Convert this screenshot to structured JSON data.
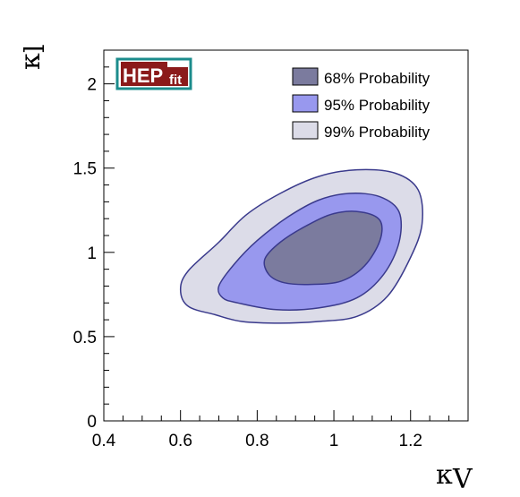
{
  "chart_data": {
    "type": "contour",
    "title": "",
    "xlabel": "κ",
    "xlabel_sub": "V",
    "ylabel": "κ",
    "ylabel_sub": "l",
    "xlim": [
      0.4,
      1.35
    ],
    "ylim": [
      0,
      2.2
    ],
    "x_ticks": [
      0.4,
      0.6,
      0.8,
      1,
      1.2
    ],
    "x_tick_labels": [
      "0.4",
      "0.6",
      "0.8",
      "1",
      "1.2"
    ],
    "y_ticks": [
      0,
      0.5,
      1,
      1.5,
      2
    ],
    "y_tick_labels": [
      "0",
      "0.5",
      "1",
      "1.5",
      "2"
    ],
    "logo": {
      "main": "HEP",
      "sub": "fit"
    },
    "legend": {
      "position": "top-right",
      "entries": [
        {
          "label": "68% Probability",
          "color": "#7b7b9e"
        },
        {
          "label": "95% Probability",
          "color": "#9898ee"
        },
        {
          "label": "99% Probability",
          "color": "#dcdce8"
        }
      ]
    },
    "regions": [
      {
        "name": "99% Probability",
        "fill": "#dcdce8",
        "points": [
          [
            0.69,
            0.63
          ],
          [
            0.76,
            0.59
          ],
          [
            0.86,
            0.58
          ],
          [
            0.96,
            0.59
          ],
          [
            1.06,
            0.62
          ],
          [
            1.14,
            0.74
          ],
          [
            1.2,
            0.97
          ],
          [
            1.23,
            1.17
          ],
          [
            1.22,
            1.37
          ],
          [
            1.16,
            1.47
          ],
          [
            1.06,
            1.49
          ],
          [
            0.96,
            1.45
          ],
          [
            0.86,
            1.35
          ],
          [
            0.77,
            1.22
          ],
          [
            0.7,
            1.06
          ],
          [
            0.62,
            0.89
          ],
          [
            0.6,
            0.78
          ],
          [
            0.62,
            0.68
          ]
        ]
      },
      {
        "name": "95% Probability",
        "fill": "#9898ee",
        "points": [
          [
            0.75,
            0.7
          ],
          [
            0.85,
            0.66
          ],
          [
            0.96,
            0.67
          ],
          [
            1.06,
            0.73
          ],
          [
            1.13,
            0.87
          ],
          [
            1.17,
            1.06
          ],
          [
            1.17,
            1.24
          ],
          [
            1.12,
            1.33
          ],
          [
            1.04,
            1.35
          ],
          [
            0.96,
            1.31
          ],
          [
            0.88,
            1.21
          ],
          [
            0.8,
            1.07
          ],
          [
            0.74,
            0.93
          ],
          [
            0.7,
            0.8
          ],
          [
            0.71,
            0.73
          ]
        ]
      },
      {
        "name": "68% Probability",
        "fill": "#7b7b9e",
        "points": [
          [
            0.83,
            0.87
          ],
          [
            0.87,
            0.82
          ],
          [
            0.94,
            0.81
          ],
          [
            1.02,
            0.83
          ],
          [
            1.08,
            0.92
          ],
          [
            1.12,
            1.07
          ],
          [
            1.12,
            1.19
          ],
          [
            1.07,
            1.24
          ],
          [
            1.0,
            1.23
          ],
          [
            0.93,
            1.16
          ],
          [
            0.86,
            1.06
          ],
          [
            0.82,
            0.96
          ]
        ]
      }
    ]
  }
}
